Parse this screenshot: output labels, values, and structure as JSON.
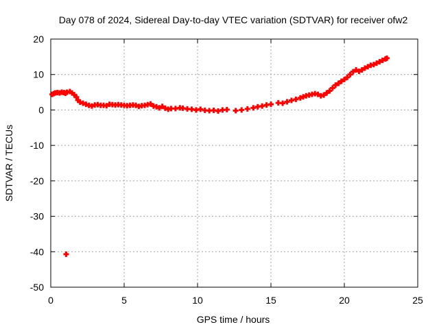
{
  "chart_data": {
    "type": "scatter",
    "title": "Day 078 of 2024, Sidereal Day-to-day VTEC variation (SDTVAR) for receiver ofw2",
    "xlabel": "GPS time / hours",
    "ylabel": "SDTVAR / TECUs",
    "xlim": [
      0,
      25
    ],
    "ylim": [
      -50,
      20
    ],
    "xticks": [
      0,
      5,
      10,
      15,
      20,
      25
    ],
    "yticks": [
      -50,
      -40,
      -30,
      -20,
      -10,
      0,
      10,
      20
    ],
    "grid": true,
    "marker": "plus",
    "series": [
      {
        "name": "SDTVAR",
        "color": "#ff0000",
        "points": [
          [
            0.1,
            4.4
          ],
          [
            0.2,
            4.6
          ],
          [
            0.3,
            4.8
          ],
          [
            0.45,
            4.9
          ],
          [
            0.6,
            4.8
          ],
          [
            0.75,
            5.0
          ],
          [
            0.9,
            4.9
          ],
          [
            1.0,
            4.7
          ],
          [
            1.1,
            5.0
          ],
          [
            1.3,
            5.2
          ],
          [
            1.45,
            4.8
          ],
          [
            1.6,
            4.3
          ],
          [
            1.75,
            3.6
          ],
          [
            1.85,
            2.8
          ],
          [
            2.0,
            2.2
          ],
          [
            2.2,
            1.9
          ],
          [
            2.4,
            1.6
          ],
          [
            2.6,
            1.3
          ],
          [
            2.8,
            1.1
          ],
          [
            3.0,
            1.4
          ],
          [
            3.2,
            1.5
          ],
          [
            3.4,
            1.3
          ],
          [
            3.6,
            1.3
          ],
          [
            3.8,
            1.2
          ],
          [
            4.0,
            1.6
          ],
          [
            4.2,
            1.5
          ],
          [
            4.4,
            1.4
          ],
          [
            4.6,
            1.5
          ],
          [
            4.8,
            1.4
          ],
          [
            5.0,
            1.3
          ],
          [
            5.2,
            1.2
          ],
          [
            5.4,
            1.3
          ],
          [
            5.6,
            1.4
          ],
          [
            5.8,
            1.3
          ],
          [
            6.0,
            1.0
          ],
          [
            6.2,
            1.2
          ],
          [
            6.4,
            1.3
          ],
          [
            6.6,
            1.5
          ],
          [
            6.8,
            1.7
          ],
          [
            7.0,
            1.1
          ],
          [
            7.2,
            0.9
          ],
          [
            7.4,
            0.6
          ],
          [
            7.6,
            1.0
          ],
          [
            7.8,
            0.5
          ],
          [
            8.0,
            0.2
          ],
          [
            8.2,
            0.4
          ],
          [
            8.5,
            0.4
          ],
          [
            8.8,
            0.6
          ],
          [
            9.0,
            0.5
          ],
          [
            9.3,
            0.3
          ],
          [
            9.6,
            0.2
          ],
          [
            9.9,
            0.0
          ],
          [
            10.2,
            0.2
          ],
          [
            10.5,
            -0.1
          ],
          [
            10.8,
            -0.2
          ],
          [
            11.1,
            -0.1
          ],
          [
            11.4,
            -0.3
          ],
          [
            11.7,
            0.0
          ],
          [
            12.0,
            0.1
          ],
          [
            12.6,
            -0.2
          ],
          [
            13.0,
            0.0
          ],
          [
            13.4,
            0.3
          ],
          [
            13.8,
            0.6
          ],
          [
            14.1,
            0.9
          ],
          [
            14.4,
            1.1
          ],
          [
            14.7,
            1.4
          ],
          [
            15.0,
            1.6
          ],
          [
            15.5,
            2.0
          ],
          [
            15.8,
            1.9
          ],
          [
            16.1,
            2.3
          ],
          [
            16.4,
            2.7
          ],
          [
            16.7,
            3.0
          ],
          [
            17.0,
            3.4
          ],
          [
            17.2,
            3.7
          ],
          [
            17.4,
            4.0
          ],
          [
            17.6,
            4.2
          ],
          [
            17.8,
            4.4
          ],
          [
            18.0,
            4.6
          ],
          [
            18.2,
            4.4
          ],
          [
            18.4,
            4.0
          ],
          [
            18.6,
            4.2
          ],
          [
            18.8,
            4.8
          ],
          [
            19.0,
            5.4
          ],
          [
            19.2,
            6.2
          ],
          [
            19.4,
            7.0
          ],
          [
            19.6,
            7.5
          ],
          [
            19.8,
            8.1
          ],
          [
            20.0,
            8.6
          ],
          [
            20.2,
            9.2
          ],
          [
            20.4,
            10.0
          ],
          [
            20.6,
            10.8
          ],
          [
            20.8,
            11.3
          ],
          [
            21.0,
            10.9
          ],
          [
            21.2,
            11.3
          ],
          [
            21.4,
            11.8
          ],
          [
            21.6,
            12.2
          ],
          [
            21.8,
            12.6
          ],
          [
            22.0,
            12.8
          ],
          [
            22.2,
            13.2
          ],
          [
            22.4,
            13.6
          ],
          [
            22.6,
            14.0
          ],
          [
            22.8,
            14.4
          ],
          [
            22.9,
            14.6
          ],
          [
            1.05,
            -40.7
          ]
        ]
      }
    ]
  }
}
